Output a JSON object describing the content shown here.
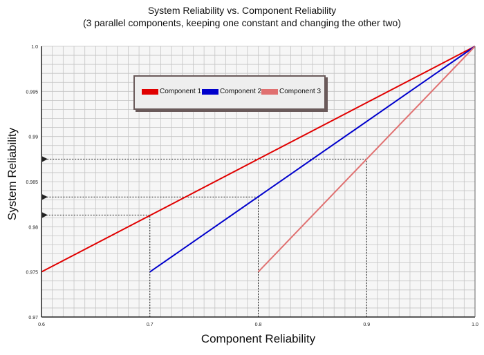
{
  "chart_data": {
    "type": "line",
    "title": "System Reliability vs. Component Reliability",
    "subtitle": "(3 parallel components, keeping one constant and changing the other two)",
    "xlabel": "Component Reliability",
    "ylabel": "System Reliability",
    "xlim": [
      0.6,
      1.0
    ],
    "ylim": [
      0.97,
      1.0
    ],
    "xticks": [
      "0.6",
      "0.7",
      "0.8",
      "0.9",
      "1.0"
    ],
    "yticks": [
      "0.97",
      "0.975",
      "0.98",
      "0.985",
      "0.99",
      "0.995",
      "1.0"
    ],
    "grid": true,
    "legend_position": "top-left",
    "series": [
      {
        "name": "Component 1",
        "color": "#e00000",
        "x": [
          0.6,
          1.0
        ],
        "y": [
          0.975,
          1.0
        ]
      },
      {
        "name": "Component 2",
        "color": "#0000cc",
        "x": [
          0.7,
          1.0
        ],
        "y": [
          0.975,
          1.0
        ]
      },
      {
        "name": "Component 3",
        "color": "#e07070",
        "x": [
          0.8,
          1.0
        ],
        "y": [
          0.975,
          1.0
        ]
      }
    ],
    "reference_points": [
      {
        "x": 0.7,
        "y": 0.9813
      },
      {
        "x": 0.8,
        "y": 0.9833
      },
      {
        "x": 0.9,
        "y": 0.9875
      }
    ]
  }
}
